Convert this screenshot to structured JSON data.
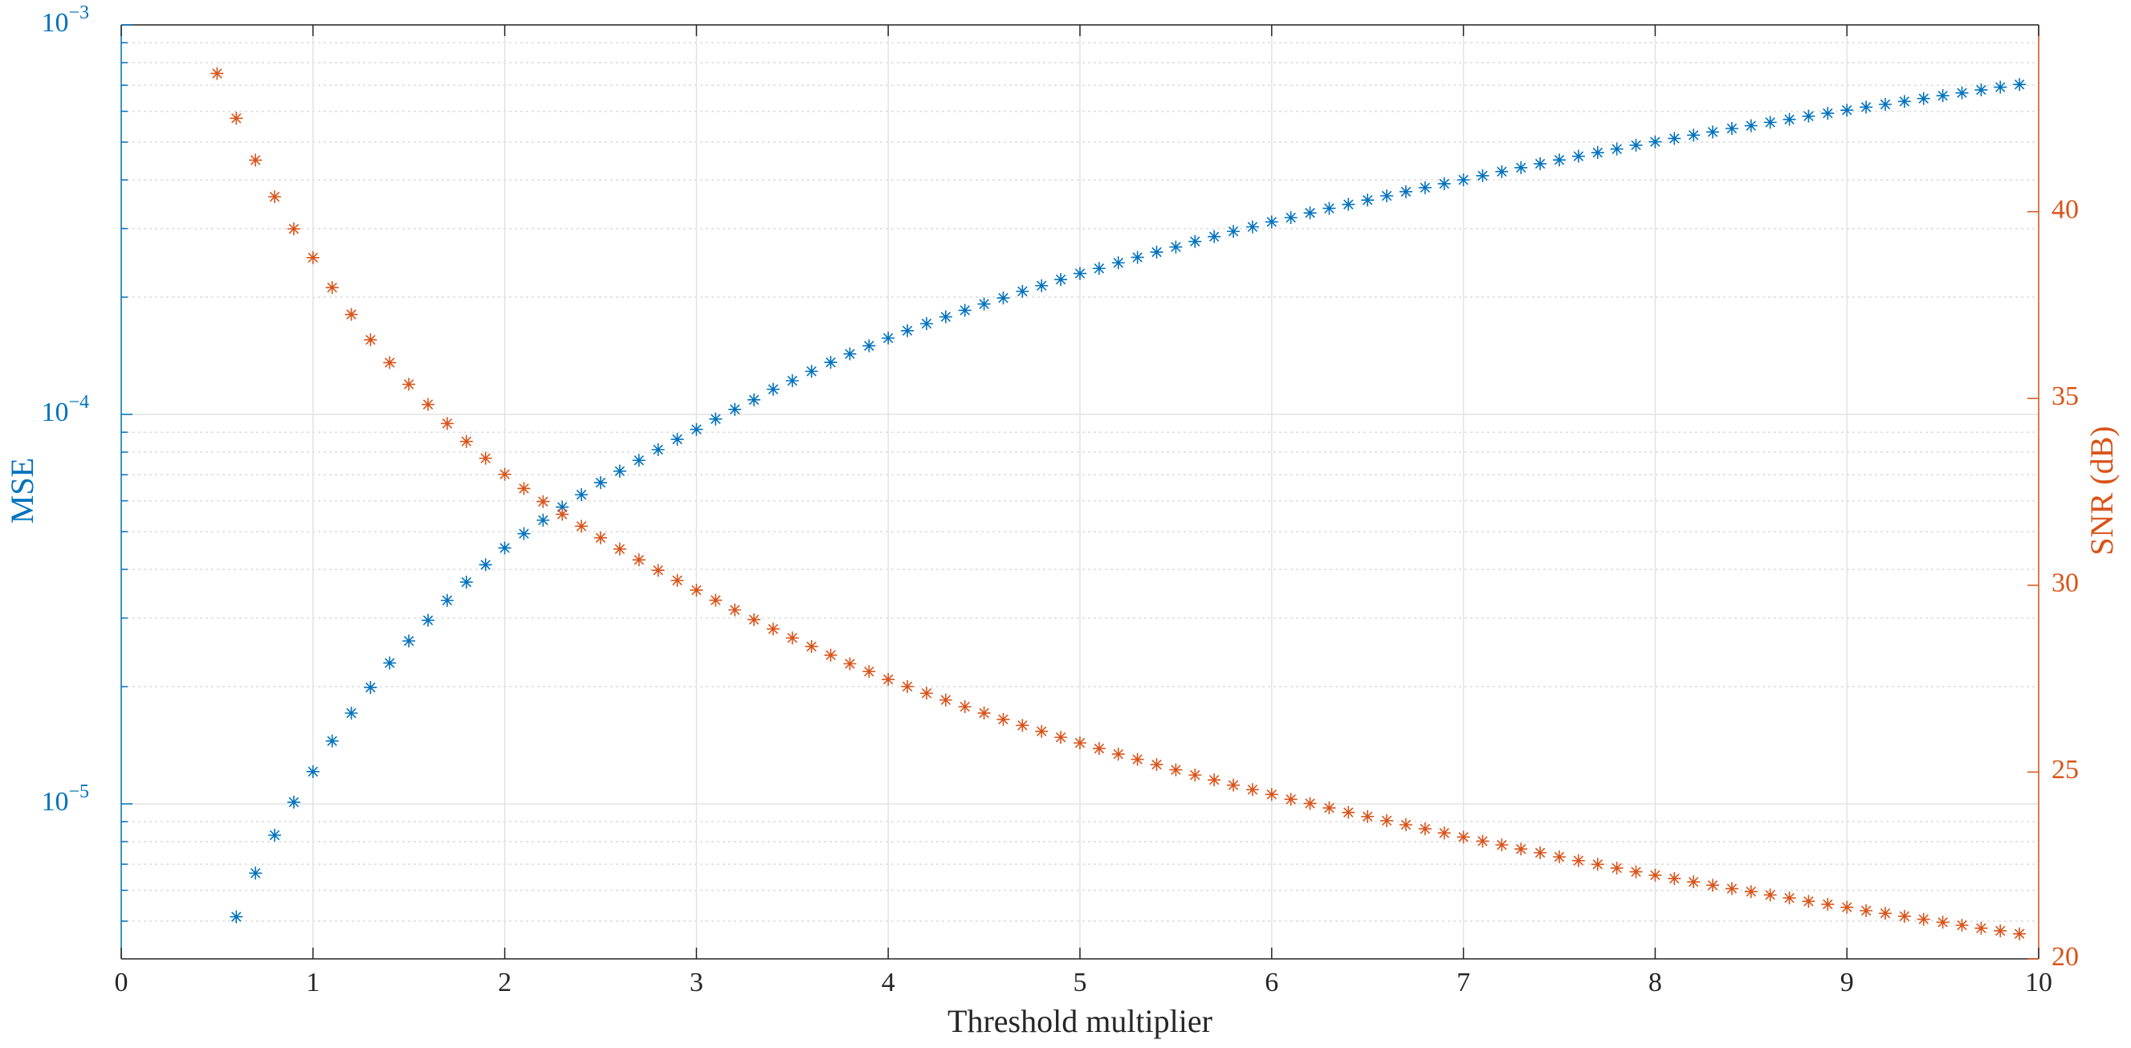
{
  "chart_data": {
    "type": "scatter",
    "xlabel": "Threshold multiplier",
    "ylabel": "MSE",
    "y2label": "SNR (dB)",
    "x": [
      0.5,
      0.6,
      0.7,
      0.8,
      0.9,
      1.0,
      1.1,
      1.2,
      1.3,
      1.4,
      1.5,
      1.6,
      1.7,
      1.8,
      1.9,
      2.0,
      2.1,
      2.2,
      2.3,
      2.4,
      2.5,
      2.6,
      2.7,
      2.8,
      2.9,
      3.0,
      3.1,
      3.2,
      3.3,
      3.4,
      3.5,
      3.6,
      3.7,
      3.8,
      3.9,
      4.0,
      4.1,
      4.2,
      4.3,
      4.4,
      4.5,
      4.6,
      4.7,
      4.8,
      4.9,
      5.0,
      5.1,
      5.2,
      5.3,
      5.4,
      5.5,
      5.6,
      5.7,
      5.8,
      5.9,
      6.0,
      6.1,
      6.2,
      6.3,
      6.4,
      6.5,
      6.6,
      6.7,
      6.8,
      6.9,
      7.0,
      7.1,
      7.2,
      7.3,
      7.4,
      7.5,
      7.6,
      7.7,
      7.8,
      7.9,
      8.0,
      8.1,
      8.2,
      8.3,
      8.4,
      8.5,
      8.6,
      8.7,
      8.8,
      8.9,
      9.0,
      9.1,
      9.2,
      9.3,
      9.4,
      9.5,
      9.6,
      9.7,
      9.8,
      9.9
    ],
    "series": [
      {
        "color": "#0072bd",
        "axis": "y",
        "values": [
          null,
          5.13e-06,
          6.64e-06,
          8.31e-06,
          1.01e-05,
          1.21e-05,
          1.45e-05,
          1.71e-05,
          1.99e-05,
          2.3e-05,
          2.62e-05,
          2.96e-05,
          3.33e-05,
          3.71e-05,
          4.11e-05,
          4.54e-05,
          4.94e-05,
          5.35e-05,
          5.78e-05,
          6.22e-05,
          6.68e-05,
          7.15e-05,
          7.62e-05,
          8.12e-05,
          8.63e-05,
          9.15e-05,
          9.73e-05,
          0.000103,
          0.000109,
          0.000116,
          0.000122,
          0.000129,
          0.000136,
          0.000143,
          0.00015,
          0.000157,
          0.000164,
          0.000171,
          0.000178,
          0.000185,
          0.000192,
          0.000199,
          0.000207,
          0.000214,
          0.000222,
          0.00023,
          0.000237,
          0.000245,
          0.000253,
          0.000261,
          0.000269,
          0.000278,
          0.000286,
          0.000295,
          0.000303,
          0.000312,
          0.00032,
          0.000329,
          0.000338,
          0.000346,
          0.000355,
          0.000364,
          0.000373,
          0.000382,
          0.000391,
          0.0004,
          0.00041,
          0.00042,
          0.00043,
          0.00044,
          0.00045,
          0.00046,
          0.00047,
          0.00048,
          0.000491,
          0.000501,
          0.000511,
          0.000521,
          0.000531,
          0.000542,
          0.000551,
          0.000562,
          0.000572,
          0.000583,
          0.000593,
          0.000604,
          0.000615,
          0.000625,
          0.000636,
          0.000647,
          0.000658,
          0.000669,
          0.000681,
          0.000692,
          0.000703
        ]
      },
      {
        "color": "#d95319",
        "axis": "y2",
        "values": [
          43.7,
          42.5,
          41.38,
          40.4,
          39.54,
          38.77,
          37.97,
          37.25,
          36.57,
          35.96,
          35.38,
          34.84,
          34.33,
          33.85,
          33.4,
          32.97,
          32.59,
          32.24,
          31.9,
          31.58,
          31.27,
          30.97,
          30.68,
          30.4,
          30.13,
          29.87,
          29.6,
          29.34,
          29.08,
          28.83,
          28.59,
          28.36,
          28.13,
          27.9,
          27.69,
          27.48,
          27.29,
          27.11,
          26.93,
          26.75,
          26.58,
          26.41,
          26.25,
          26.09,
          25.93,
          25.78,
          25.63,
          25.48,
          25.34,
          25.2,
          25.06,
          24.92,
          24.79,
          24.65,
          24.53,
          24.4,
          24.27,
          24.16,
          24.04,
          23.92,
          23.81,
          23.7,
          23.59,
          23.48,
          23.37,
          23.26,
          23.15,
          23.05,
          22.94,
          22.84,
          22.73,
          22.63,
          22.53,
          22.43,
          22.33,
          22.24,
          22.15,
          22.06,
          21.97,
          21.88,
          21.8,
          21.71,
          21.63,
          21.54,
          21.46,
          21.38,
          21.29,
          21.22,
          21.14,
          21.06,
          20.98,
          20.9,
          20.82,
          20.75,
          20.67
        ]
      }
    ],
    "xlim": [
      0,
      10
    ],
    "xticks": [
      0,
      1,
      2,
      3,
      4,
      5,
      6,
      7,
      8,
      9,
      10
    ],
    "yscale": "log",
    "ylim": [
      4e-06,
      0.001
    ],
    "yticks": [
      {
        "value": 1e-05,
        "label": "10−5"
      },
      {
        "value": 0.0001,
        "label": "10−4"
      },
      {
        "value": 0.001,
        "label": "10−3"
      }
    ],
    "yminorticks": [
      5e-06,
      6e-06,
      7e-06,
      8e-06,
      9e-06,
      2e-05,
      3e-05,
      4e-05,
      5e-05,
      6e-05,
      7e-05,
      8e-05,
      9e-05,
      0.0002,
      0.0003,
      0.0004,
      0.0005,
      0.0006,
      0.0007,
      0.0008,
      0.0009
    ],
    "y2lim": [
      20,
      45
    ],
    "y2ticks": [
      20,
      25,
      30,
      35,
      40
    ],
    "grid": true
  }
}
